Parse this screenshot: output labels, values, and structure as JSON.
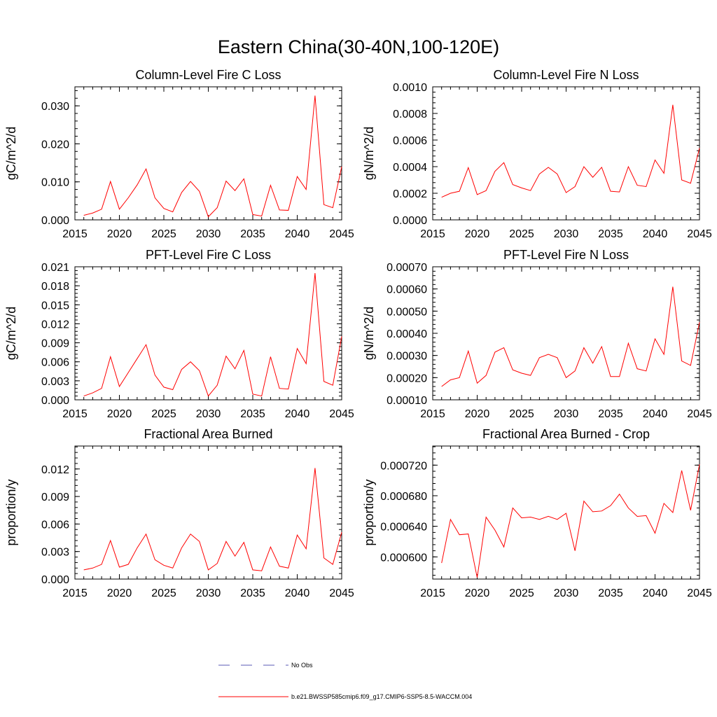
{
  "figure": {
    "title": "Eastern China(30-40N,100-120E)"
  },
  "colors": {
    "series": "#ff0000",
    "legend_dash": "#5a5ab4",
    "axis": "#000000"
  },
  "legend": {
    "items": [
      {
        "label": "No Obs",
        "style": "dashed"
      },
      {
        "label": "b.e21.BWSSP585cmip6.f09_g17.CMIP6-SSP5-8.5-WACCM.004",
        "style": "solid"
      }
    ]
  },
  "chart_data": [
    {
      "type": "line",
      "title": "Column-Level Fire C Loss",
      "xlabel": "",
      "ylabel": "gC/m^2/d",
      "xlim": [
        2015,
        2045
      ],
      "ylim": [
        0.0,
        0.035
      ],
      "xticks": [
        2015,
        2020,
        2025,
        2030,
        2035,
        2040,
        2045
      ],
      "yticks": [
        0.0,
        0.01,
        0.02,
        0.03
      ],
      "ytick_labels": [
        "0.000",
        "0.010",
        "0.020",
        "0.030"
      ],
      "series": [
        {
          "name": "b.e21.BWSSP585cmip6.f09_g17.CMIP6-SSP5-8.5-WACCM.004",
          "x": [
            2016,
            2017,
            2018,
            2019,
            2020,
            2021,
            2022,
            2023,
            2024,
            2025,
            2026,
            2027,
            2028,
            2029,
            2030,
            2031,
            2032,
            2033,
            2034,
            2035,
            2036,
            2037,
            2038,
            2039,
            2040,
            2041,
            2042,
            2043,
            2044,
            2045
          ],
          "y": [
            0.0012,
            0.0018,
            0.0028,
            0.0101,
            0.0028,
            0.0058,
            0.0092,
            0.0134,
            0.0058,
            0.003,
            0.0021,
            0.0072,
            0.0101,
            0.0075,
            0.0008,
            0.0032,
            0.0102,
            0.0077,
            0.0108,
            0.0014,
            0.001,
            0.0091,
            0.0026,
            0.0025,
            0.0114,
            0.008,
            0.0327,
            0.004,
            0.0032,
            0.014
          ]
        }
      ]
    },
    {
      "type": "line",
      "title": "Column-Level Fire N Loss",
      "xlabel": "",
      "ylabel": "gN/m^2/d",
      "xlim": [
        2015,
        2045
      ],
      "ylim": [
        0.0,
        0.001
      ],
      "xticks": [
        2015,
        2020,
        2025,
        2030,
        2035,
        2040,
        2045
      ],
      "yticks": [
        0.0,
        0.0002,
        0.0004,
        0.0006,
        0.0008,
        0.001
      ],
      "ytick_labels": [
        "0.0000",
        "0.0002",
        "0.0004",
        "0.0006",
        "0.0008",
        "0.0010"
      ],
      "series": [
        {
          "name": "b.e21.BWSSP585cmip6.f09_g17.CMIP6-SSP5-8.5-WACCM.004",
          "x": [
            2016,
            2017,
            2018,
            2019,
            2020,
            2021,
            2022,
            2023,
            2024,
            2025,
            2026,
            2027,
            2028,
            2029,
            2030,
            2031,
            2032,
            2033,
            2034,
            2035,
            2036,
            2037,
            2038,
            2039,
            2040,
            2041,
            2042,
            2043,
            2044,
            2045
          ],
          "y": [
            0.00017,
            0.0002,
            0.000215,
            0.000393,
            0.00019,
            0.00022,
            0.000365,
            0.00043,
            0.000265,
            0.00024,
            0.00022,
            0.000345,
            0.000395,
            0.000345,
            0.000205,
            0.00025,
            0.0004,
            0.00032,
            0.000395,
            0.000215,
            0.00021,
            0.0004,
            0.00026,
            0.00025,
            0.00045,
            0.00035,
            0.000865,
            0.0003,
            0.000275,
            0.00054
          ]
        }
      ]
    },
    {
      "type": "line",
      "title": "PFT-Level Fire C Loss",
      "xlabel": "",
      "ylabel": "gC/m^2/d",
      "xlim": [
        2015,
        2045
      ],
      "ylim": [
        0.0,
        0.021
      ],
      "xticks": [
        2015,
        2020,
        2025,
        2030,
        2035,
        2040,
        2045
      ],
      "yticks": [
        0.0,
        0.003,
        0.006,
        0.009,
        0.012,
        0.015,
        0.018,
        0.021
      ],
      "ytick_labels": [
        "0.000",
        "0.003",
        "0.006",
        "0.009",
        "0.012",
        "0.015",
        "0.018",
        "0.021"
      ],
      "series": [
        {
          "name": "b.e21.BWSSP585cmip6.f09_g17.CMIP6-SSP5-8.5-WACCM.004",
          "x": [
            2016,
            2017,
            2018,
            2019,
            2020,
            2021,
            2022,
            2023,
            2024,
            2025,
            2026,
            2027,
            2028,
            2029,
            2030,
            2031,
            2032,
            2033,
            2034,
            2035,
            2036,
            2037,
            2038,
            2039,
            2040,
            2041,
            2042,
            2043,
            2044,
            2045
          ],
          "y": [
            0.0006,
            0.0011,
            0.0018,
            0.0068,
            0.0021,
            0.0043,
            0.0065,
            0.0087,
            0.0039,
            0.002,
            0.0016,
            0.0048,
            0.006,
            0.0046,
            0.0006,
            0.0023,
            0.0069,
            0.0049,
            0.0078,
            0.0009,
            0.0006,
            0.0068,
            0.0018,
            0.0017,
            0.0081,
            0.0057,
            0.02,
            0.0029,
            0.0023,
            0.01
          ]
        }
      ]
    },
    {
      "type": "line",
      "title": "PFT-Level Fire N Loss",
      "xlabel": "",
      "ylabel": "gN/m^2/d",
      "xlim": [
        2015,
        2045
      ],
      "ylim": [
        0.0001,
        0.0007
      ],
      "xticks": [
        2015,
        2020,
        2025,
        2030,
        2035,
        2040,
        2045
      ],
      "yticks": [
        0.0001,
        0.0002,
        0.0003,
        0.0004,
        0.0005,
        0.0006,
        0.0007
      ],
      "ytick_labels": [
        "0.00010",
        "0.00020",
        "0.00030",
        "0.00040",
        "0.00050",
        "0.00060",
        "0.00070"
      ],
      "series": [
        {
          "name": "b.e21.BWSSP585cmip6.f09_g17.CMIP6-SSP5-8.5-WACCM.004",
          "x": [
            2016,
            2017,
            2018,
            2019,
            2020,
            2021,
            2022,
            2023,
            2024,
            2025,
            2026,
            2027,
            2028,
            2029,
            2030,
            2031,
            2032,
            2033,
            2034,
            2035,
            2036,
            2037,
            2038,
            2039,
            2040,
            2041,
            2042,
            2043,
            2044,
            2045
          ],
          "y": [
            0.00016,
            0.00019,
            0.0002,
            0.00032,
            0.000175,
            0.00021,
            0.000315,
            0.000335,
            0.000235,
            0.00022,
            0.00021,
            0.00029,
            0.000305,
            0.00029,
            0.0002,
            0.00023,
            0.000335,
            0.000265,
            0.00034,
            0.000205,
            0.000205,
            0.000355,
            0.00024,
            0.00023,
            0.000375,
            0.000305,
            0.00061,
            0.000275,
            0.000255,
            0.00045
          ]
        }
      ]
    },
    {
      "type": "line",
      "title": "Fractional Area Burned",
      "xlabel": "",
      "ylabel": "proportion/y",
      "xlim": [
        2015,
        2045
      ],
      "ylim": [
        0.0,
        0.0145
      ],
      "xticks": [
        2015,
        2020,
        2025,
        2030,
        2035,
        2040,
        2045
      ],
      "yticks": [
        0.0,
        0.003,
        0.006,
        0.009,
        0.012
      ],
      "ytick_labels": [
        "0.000",
        "0.003",
        "0.006",
        "0.009",
        "0.012"
      ],
      "series": [
        {
          "name": "b.e21.BWSSP585cmip6.f09_g17.CMIP6-SSP5-8.5-WACCM.004",
          "x": [
            2016,
            2017,
            2018,
            2019,
            2020,
            2021,
            2022,
            2023,
            2024,
            2025,
            2026,
            2027,
            2028,
            2029,
            2030,
            2031,
            2032,
            2033,
            2034,
            2035,
            2036,
            2037,
            2038,
            2039,
            2040,
            2041,
            2042,
            2043,
            2044,
            2045
          ],
          "y": [
            0.001,
            0.0012,
            0.0016,
            0.0042,
            0.0013,
            0.0016,
            0.0034,
            0.0049,
            0.0021,
            0.0015,
            0.0012,
            0.0034,
            0.0049,
            0.0041,
            0.001,
            0.0017,
            0.0041,
            0.0025,
            0.004,
            0.001,
            0.0009,
            0.0035,
            0.0014,
            0.0012,
            0.0048,
            0.0033,
            0.0121,
            0.0023,
            0.0016,
            0.0051
          ]
        }
      ]
    },
    {
      "type": "line",
      "title": "Fractional Area Burned - Crop",
      "xlabel": "",
      "ylabel": "proportion/y",
      "xlim": [
        2015,
        2045
      ],
      "ylim": [
        0.000571,
        0.000745
      ],
      "xticks": [
        2015,
        2020,
        2025,
        2030,
        2035,
        2040,
        2045
      ],
      "yticks": [
        0.0006,
        0.00064,
        0.00068,
        0.00072
      ],
      "ytick_labels": [
        "0.000600",
        "0.000640",
        "0.000680",
        "0.000720"
      ],
      "series": [
        {
          "name": "b.e21.BWSSP585cmip6.f09_g17.CMIP6-SSP5-8.5-WACCM.004",
          "x": [
            2016,
            2017,
            2018,
            2019,
            2020,
            2021,
            2022,
            2023,
            2024,
            2025,
            2026,
            2027,
            2028,
            2029,
            2030,
            2031,
            2032,
            2033,
            2034,
            2035,
            2036,
            2037,
            2038,
            2039,
            2040,
            2041,
            2042,
            2043,
            2044,
            2045
          ],
          "y": [
            0.000592,
            0.000649,
            0.000629,
            0.00063,
            0.000573,
            0.000652,
            0.000635,
            0.000613,
            0.000664,
            0.000651,
            0.000652,
            0.000649,
            0.000653,
            0.000649,
            0.000657,
            0.000608,
            0.000673,
            0.000659,
            0.00066,
            0.000667,
            0.000682,
            0.000664,
            0.000653,
            0.000654,
            0.000631,
            0.00067,
            0.000658,
            0.000713,
            0.000661,
            0.000721
          ]
        }
      ]
    }
  ]
}
